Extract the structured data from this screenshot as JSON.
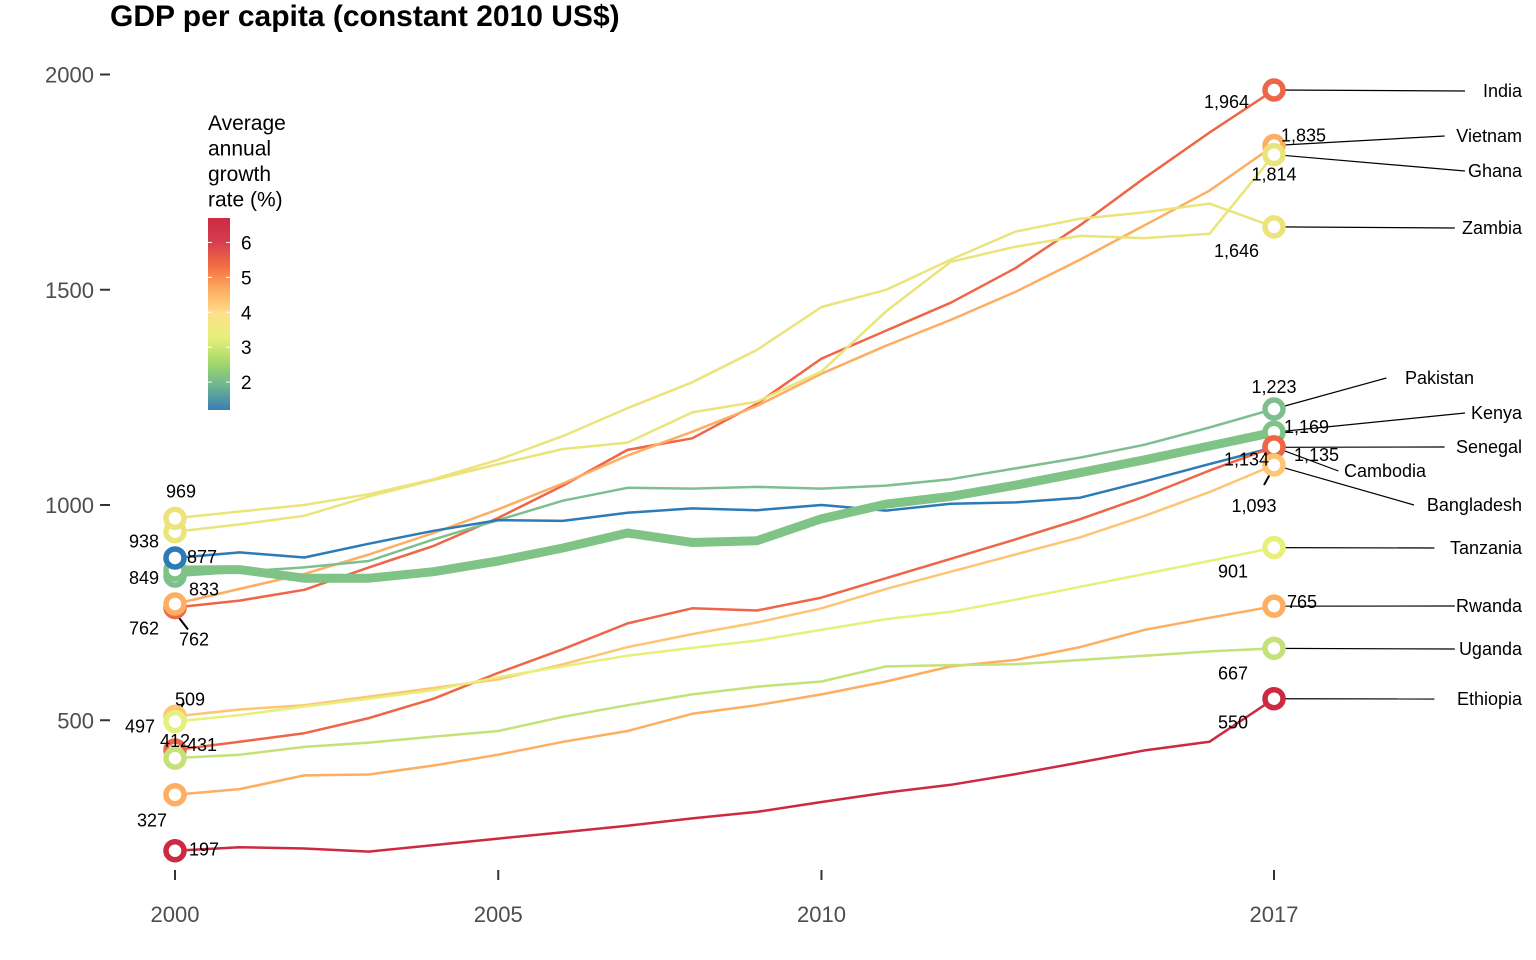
{
  "chart_data": {
    "type": "line",
    "title": "GDP per capita (constant 2010 US$)",
    "xlabel": "",
    "ylabel": "",
    "x_ticks": [
      "2000",
      "2005",
      "2010",
      "2017"
    ],
    "y_ticks": [
      "500",
      "1000",
      "1500",
      "2000"
    ],
    "xlim": [
      2000,
      2017
    ],
    "ylim": [
      150,
      2050
    ],
    "grid": false,
    "legend": {
      "title": "Average annual growth rate (%)",
      "type": "colorbar",
      "placement": "top-left",
      "ticks": [
        "2",
        "3",
        "4",
        "5",
        "6"
      ],
      "range": [
        1.2,
        6.7
      ],
      "colors": [
        "#3a7eb6",
        "#6cb491",
        "#a6d96a",
        "#e6f07a",
        "#fee08b",
        "#fdae61",
        "#f46d43",
        "#d53e4f",
        "#cc2a40"
      ]
    },
    "x": [
      2000,
      2001,
      2002,
      2003,
      2004,
      2005,
      2006,
      2007,
      2008,
      2009,
      2010,
      2011,
      2012,
      2013,
      2014,
      2015,
      2016,
      2017
    ],
    "series": [
      {
        "name": "India",
        "growth": 5.6,
        "color": "#ef6548",
        "start_label": "762",
        "end_label": "1,964",
        "values": [
          762,
          778,
          803,
          855,
          905,
          970,
          1045,
          1128,
          1155,
          1235,
          1340,
          1405,
          1470,
          1550,
          1650,
          1760,
          1865,
          1964
        ]
      },
      {
        "name": "Vietnam",
        "growth": 5.0,
        "color": "#fdae61",
        "start_label": "",
        "end_label": "1,835",
        "values": [
          770,
          805,
          840,
          885,
          935,
          990,
          1050,
          1115,
          1170,
          1230,
          1305,
          1370,
          1430,
          1495,
          1570,
          1650,
          1730,
          1835
        ]
      },
      {
        "name": "Ghana",
        "growth": 4.2,
        "color": "#eae47a",
        "start_label": "938",
        "end_label": "1,814",
        "values": [
          938,
          955,
          975,
          1020,
          1058,
          1095,
          1130,
          1145,
          1215,
          1240,
          1310,
          1450,
          1565,
          1600,
          1625,
          1620,
          1630,
          1814
        ]
      },
      {
        "name": "Zambia",
        "growth": 3.4,
        "color": "#ece47a",
        "start_label": "969",
        "end_label": "1,646",
        "values": [
          969,
          985,
          1000,
          1025,
          1060,
          1105,
          1160,
          1225,
          1285,
          1360,
          1460,
          1500,
          1570,
          1635,
          1665,
          1680,
          1700,
          1646
        ]
      },
      {
        "name": "Pakistan",
        "growth": 2.2,
        "color": "#7fbf8f",
        "start_label": "",
        "end_label": "1,223",
        "values": [
          835,
          845,
          855,
          870,
          920,
          965,
          1010,
          1040,
          1038,
          1042,
          1038,
          1045,
          1060,
          1085,
          1110,
          1140,
          1180,
          1223
        ]
      },
      {
        "name": "Kenya",
        "growth": 1.9,
        "color": "#7fc486",
        "start_label": "849",
        "end_label": "1,169",
        "thick": true,
        "values": [
          849,
          850,
          830,
          830,
          845,
          870,
          900,
          935,
          913,
          917,
          968,
          1002,
          1020,
          1046,
          1075,
          1105,
          1137,
          1169
        ]
      },
      {
        "name": "Senegal",
        "growth": 1.5,
        "color": "#2c7bb6",
        "start_label": "877",
        "end_label": "1,134",
        "values": [
          877,
          890,
          878,
          910,
          940,
          965,
          963,
          982,
          992,
          988,
          1000,
          987,
          1003,
          1006,
          1017,
          1055,
          1095,
          1134
        ]
      },
      {
        "name": "Cambodia",
        "growth": 5.6,
        "color": "#ef6548",
        "start_label": "431",
        "end_label": "1,135",
        "values": [
          431,
          450,
          470,
          505,
          550,
          610,
          665,
          725,
          760,
          755,
          785,
          830,
          875,
          920,
          967,
          1020,
          1080,
          1135
        ]
      },
      {
        "name": "Bangladesh",
        "growth": 4.7,
        "color": "#fdc574",
        "start_label": "509",
        "end_label": "1,093",
        "values": [
          509,
          525,
          535,
          555,
          575,
          595,
          630,
          670,
          700,
          727,
          760,
          805,
          845,
          885,
          925,
          975,
          1030,
          1093
        ]
      },
      {
        "name": "Tanzania",
        "growth": 3.5,
        "color": "#e6f07a",
        "start_label": "497",
        "end_label": "901",
        "values": [
          497,
          512,
          532,
          550,
          570,
          600,
          625,
          650,
          668,
          685,
          710,
          735,
          752,
          780,
          810,
          840,
          870,
          901
        ]
      },
      {
        "name": "Rwanda",
        "growth": 5.0,
        "color": "#fdae61",
        "start_label": "327",
        "end_label": "765",
        "values": [
          327,
          340,
          372,
          374,
          395,
          420,
          450,
          475,
          515,
          535,
          560,
          590,
          625,
          640,
          670,
          710,
          738,
          765
        ]
      },
      {
        "name": "Uganda",
        "growth": 3.0,
        "color": "#c4e17a",
        "start_label": "412",
        "end_label": "667",
        "values": [
          412,
          420,
          438,
          448,
          462,
          475,
          508,
          535,
          560,
          578,
          590,
          625,
          628,
          630,
          640,
          650,
          660,
          667
        ]
      },
      {
        "name": "Ethiopia",
        "growth": 6.6,
        "color": "#cc2a40",
        "start_label": "197",
        "end_label": "550",
        "values": [
          197,
          205,
          202,
          195,
          210,
          225,
          240,
          255,
          272,
          287,
          310,
          332,
          350,
          375,
          402,
          430,
          450,
          550
        ]
      }
    ]
  }
}
